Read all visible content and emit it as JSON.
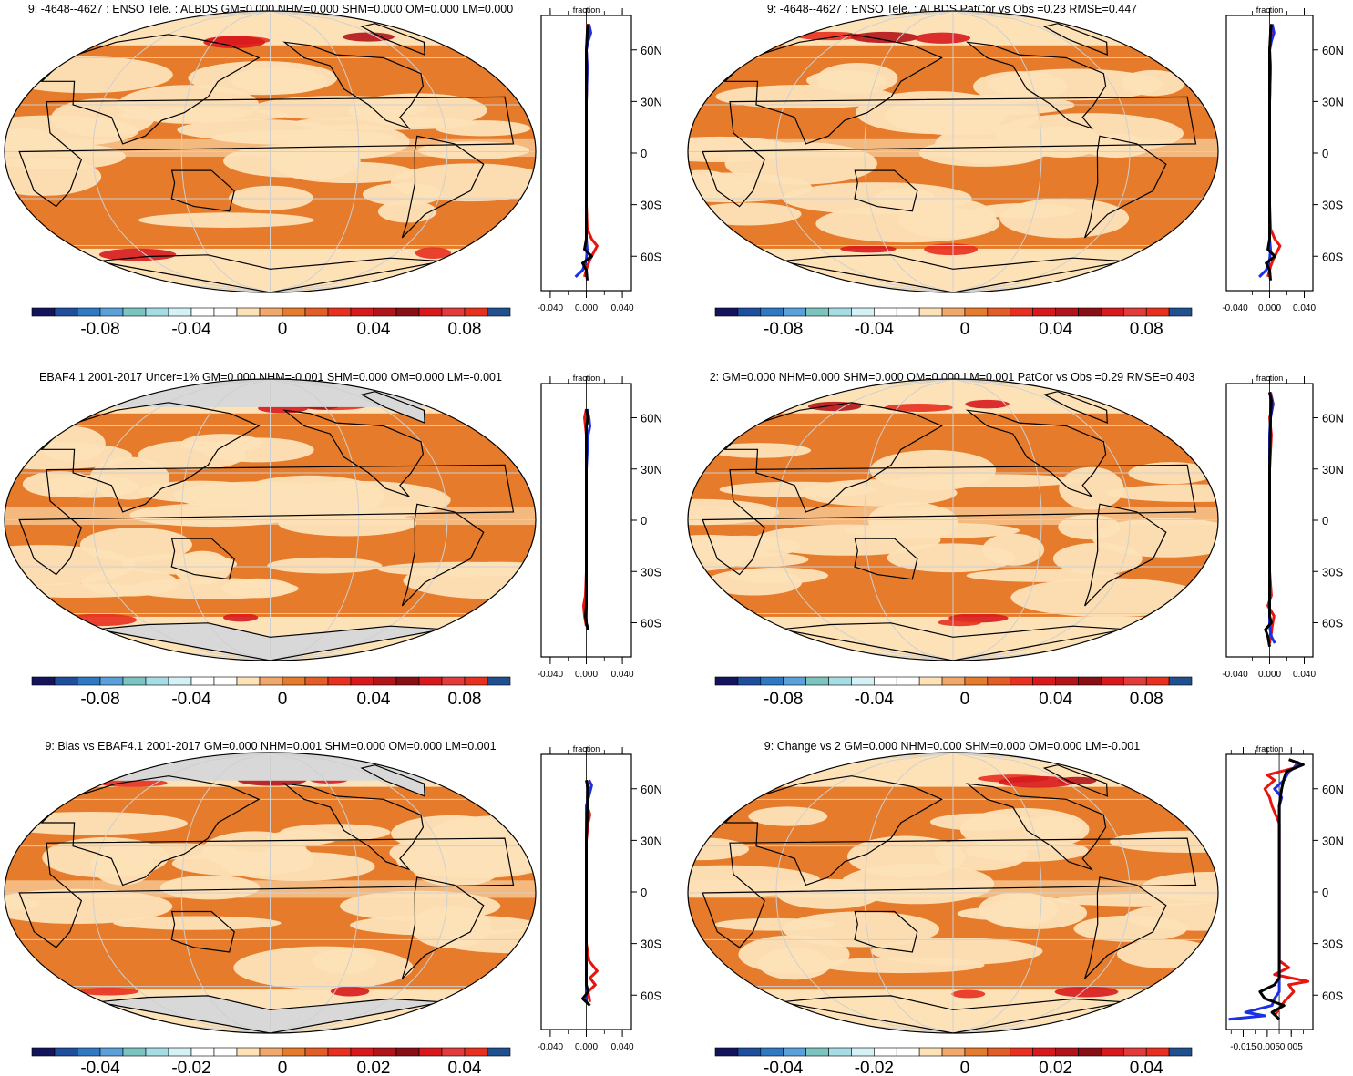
{
  "colors": {
    "land_missing": "#d8d8d8",
    "coast": "#000000",
    "grid": "#cfcfcf",
    "profile_lines": [
      "#e8140f",
      "#1b2fe6",
      "#000000"
    ],
    "palette": [
      "#14145c",
      "#1e4f9e",
      "#2f78c4",
      "#5aa0db",
      "#7cc4c0",
      "#a6dde4",
      "#d4f1f6",
      "#ffffff",
      "#ffffff",
      "#fde2b8",
      "#f1a86a",
      "#e57b2b",
      "#e25e26",
      "#e7301f",
      "#d7191c",
      "#b2141b",
      "#8a0f14",
      "#d7191c",
      "#e23b3b",
      "#e7301f",
      "#205090"
    ]
  },
  "chart_data": [
    {
      "type": "heatmap",
      "title": "9: -4648--4627 : ENSO Tele. : ALBDS GM=0.000 NHM=0.000 SHM=0.000 OM=0.000 LM=0.000",
      "colorbar_ticks": [
        "-0.08",
        "-0.04",
        "0",
        "0.04",
        "0.08"
      ],
      "profile": {
        "title": "fraction",
        "x_ticks": [
          "-0.040",
          "0.000",
          "0.040"
        ],
        "xlim": [
          -0.05,
          0.05
        ],
        "y_ticks": [
          "60N",
          "30N",
          "0",
          "30S",
          "60S"
        ],
        "ylim": [
          -80,
          80
        ],
        "series": [
          {
            "lat": [
              -72,
              -66,
              -62,
              -58,
              -54,
              -50,
              -44,
              -30,
              -10,
              10,
              30,
              50,
              60,
              70,
              75
            ],
            "values": [
              -0.002,
              0.001,
              0.004,
              0.008,
              0.012,
              0.006,
              0.001,
              0.0,
              0.0,
              0.0,
              0.0,
              0.001,
              0.0,
              0.002,
              0.001
            ]
          },
          {
            "lat": [
              -72,
              -68,
              -62,
              -56,
              -50,
              -30,
              0,
              30,
              50,
              60,
              65,
              70,
              75
            ],
            "values": [
              -0.012,
              -0.004,
              0.0,
              0.001,
              0.0,
              0.0,
              0.0,
              0.0,
              0.001,
              0.0,
              0.002,
              0.005,
              0.003
            ]
          },
          {
            "lat": [
              -74,
              -68,
              -64,
              -60,
              -56,
              -50,
              -30,
              0,
              30,
              60,
              70,
              75
            ],
            "values": [
              0.001,
              0.0,
              -0.004,
              0.006,
              -0.002,
              0.0,
              0.0,
              0.0,
              0.0,
              0.0,
              0.001,
              0.002
            ]
          }
        ]
      }
    },
    {
      "type": "heatmap",
      "title": "9: -4648--4627 : ENSO Tele. : ALBDS PatCor vs Obs =0.23 RMSE=0.447",
      "colorbar_ticks": [
        "-0.08",
        "-0.04",
        "0",
        "0.04",
        "0.08"
      ],
      "profile": {
        "title": "fraction",
        "x_ticks": [
          "-0.040",
          "0.000",
          "0.040"
        ],
        "xlim": [
          -0.05,
          0.05
        ],
        "y_ticks": [
          "60N",
          "30N",
          "0",
          "30S",
          "60S"
        ],
        "ylim": [
          -80,
          80
        ],
        "series": [
          {
            "lat": [
              -72,
              -66,
              -62,
              -58,
              -54,
              -50,
              -44,
              -30,
              -10,
              10,
              30,
              50,
              60,
              70,
              75
            ],
            "values": [
              -0.002,
              0.001,
              0.004,
              0.008,
              0.012,
              0.006,
              0.001,
              0.0,
              0.0,
              0.0,
              0.0,
              0.001,
              0.0,
              0.002,
              0.001
            ]
          },
          {
            "lat": [
              -72,
              -68,
              -62,
              -56,
              -50,
              -30,
              0,
              30,
              50,
              60,
              65,
              70,
              75
            ],
            "values": [
              -0.012,
              -0.004,
              0.0,
              0.001,
              0.0,
              0.0,
              0.0,
              0.0,
              0.001,
              0.0,
              0.002,
              0.005,
              0.003
            ]
          },
          {
            "lat": [
              -74,
              -68,
              -64,
              -60,
              -56,
              -50,
              -30,
              0,
              30,
              60,
              70,
              75
            ],
            "values": [
              0.001,
              0.0,
              -0.004,
              0.006,
              -0.002,
              0.0,
              0.0,
              0.0,
              0.0,
              0.0,
              0.001,
              0.002
            ]
          }
        ]
      }
    },
    {
      "type": "heatmap",
      "title": "EBAF4.1 2001-2017 Uncer=1% GM=0.000 NHM=-0.001 SHM=0.000 OM=0.000 LM=-0.001",
      "colorbar_ticks": [
        "-0.08",
        "-0.04",
        "0",
        "0.04",
        "0.08"
      ],
      "profile": {
        "title": "fraction",
        "x_ticks": [
          "-0.040",
          "0.000",
          "0.040"
        ],
        "xlim": [
          -0.05,
          0.05
        ],
        "y_ticks": [
          "60N",
          "30N",
          "0",
          "30S",
          "60S"
        ],
        "ylim": [
          -80,
          80
        ],
        "series": [
          {
            "lat": [
              -62,
              -56,
              -50,
              -44,
              -30,
              0,
              30,
              50,
              60,
              65
            ],
            "values": [
              0.0,
              -0.002,
              -0.003,
              -0.001,
              0.0,
              0.0,
              0.0,
              0.0,
              -0.002,
              0.0
            ]
          },
          {
            "lat": [
              -62,
              -50,
              -30,
              0,
              30,
              50,
              55,
              60,
              65
            ],
            "values": [
              0.0,
              0.0,
              0.0,
              0.0,
              0.0,
              0.002,
              0.004,
              0.003,
              0.001
            ]
          },
          {
            "lat": [
              -64,
              -60,
              -56,
              -50,
              -30,
              0,
              30,
              55,
              60,
              65
            ],
            "values": [
              0.002,
              0.0,
              -0.001,
              0.0,
              0.0,
              0.0,
              0.0,
              0.0,
              0.002,
              0.0
            ]
          }
        ]
      }
    },
    {
      "type": "heatmap",
      "title": "2: GM=0.000 NHM=0.000 SHM=0.000 OM=0.000 LM=0.001 PatCor vs Obs =0.29 RMSE=0.403",
      "colorbar_ticks": [
        "-0.08",
        "-0.04",
        "0",
        "0.04",
        "0.08"
      ],
      "profile": {
        "title": "fraction",
        "x_ticks": [
          "-0.040",
          "0.000",
          "0.040"
        ],
        "xlim": [
          -0.05,
          0.05
        ],
        "y_ticks": [
          "60N",
          "30N",
          "0",
          "30S",
          "60S"
        ],
        "ylim": [
          -80,
          80
        ],
        "series": [
          {
            "lat": [
              -72,
              -66,
              -62,
              -56,
              -50,
              -44,
              -30,
              0,
              30,
              50,
              60,
              68,
              75
            ],
            "values": [
              0.0,
              0.002,
              0.003,
              0.005,
              -0.002,
              0.002,
              0.0,
              0.0,
              0.0,
              0.002,
              0.0,
              0.004,
              0.001
            ]
          },
          {
            "lat": [
              -72,
              -68,
              -62,
              -50,
              -30,
              0,
              30,
              50,
              60,
              68,
              75
            ],
            "values": [
              0.006,
              0.002,
              0.0,
              0.0,
              0.0,
              0.0,
              0.0,
              0.0,
              0.001,
              0.004,
              0.0
            ]
          },
          {
            "lat": [
              -74,
              -68,
              -64,
              -60,
              -56,
              -50,
              -30,
              0,
              30,
              60,
              70,
              75
            ],
            "values": [
              0.0,
              -0.002,
              -0.005,
              0.002,
              0.0,
              0.0,
              0.0,
              0.0,
              0.0,
              0.001,
              0.002,
              0.0
            ]
          }
        ]
      }
    },
    {
      "type": "heatmap",
      "title": "9: Bias vs EBAF4.1 2001-2017 GM=0.000 NHM=0.001 SHM=0.000 OM=0.000 LM=0.001",
      "colorbar_ticks": [
        "-0.04",
        "-0.02",
        "0",
        "0.02",
        "0.04"
      ],
      "profile": {
        "title": "fraction",
        "x_ticks": [
          "-0.040",
          "0.000",
          "0.040"
        ],
        "xlim": [
          -0.05,
          0.05
        ],
        "y_ticks": [
          "60N",
          "30N",
          "0",
          "30S",
          "60S"
        ],
        "ylim": [
          -80,
          80
        ],
        "series": [
          {
            "lat": [
              -64,
              -58,
              -54,
              -50,
              -46,
              -40,
              -30,
              0,
              30,
              40,
              45,
              50,
              60,
              65
            ],
            "values": [
              0.004,
              0.002,
              0.01,
              0.004,
              0.012,
              0.003,
              0.0,
              0.0,
              0.0,
              0.002,
              0.004,
              0.001,
              0.003,
              0.0
            ]
          },
          {
            "lat": [
              -64,
              -50,
              -30,
              0,
              30,
              50,
              58,
              62,
              65
            ],
            "values": [
              0.0,
              0.0,
              0.0,
              0.0,
              0.0,
              0.0,
              0.004,
              0.006,
              0.003
            ]
          },
          {
            "lat": [
              -66,
              -62,
              -58,
              -54,
              -50,
              -30,
              0,
              30,
              60,
              65
            ],
            "values": [
              0.004,
              -0.004,
              0.002,
              0.0,
              0.0,
              0.0,
              0.0,
              0.0,
              0.002,
              0.0
            ]
          }
        ]
      }
    },
    {
      "type": "heatmap",
      "title": "9: Change vs 2 GM=0.000 NHM=0.000 SHM=0.000 OM=0.000 LM=-0.001",
      "colorbar_ticks": [
        "-0.04",
        "-0.02",
        "0",
        "0.02",
        "0.04"
      ],
      "profile": {
        "title": "fraction",
        "x_ticks": [
          "-0.015",
          "-0.005",
          "0.005"
        ],
        "xlim": [
          -0.022,
          0.014
        ],
        "y_ticks": [
          "60N",
          "30N",
          "0",
          "30S",
          "60S"
        ],
        "ylim": [
          -80,
          80
        ],
        "series": [
          {
            "lat": [
              -72,
              -68,
              -64,
              -58,
              -54,
              -52,
              -48,
              -44,
              -40,
              -30,
              0,
              30,
              40,
              50,
              55,
              60,
              65,
              68,
              72,
              76
            ],
            "values": [
              -0.002,
              0.0,
              0.002,
              0.006,
              0.004,
              0.012,
              -0.002,
              0.004,
              0.0,
              0.0,
              0.0,
              0.0,
              0.0,
              -0.003,
              -0.004,
              -0.006,
              -0.002,
              -0.005,
              0.006,
              0.008
            ]
          },
          {
            "lat": [
              -74,
              -72,
              -70,
              -66,
              -62,
              -58,
              -50,
              -30,
              0,
              30,
              50,
              55,
              60,
              65,
              70,
              74,
              76
            ],
            "values": [
              -0.021,
              -0.006,
              -0.014,
              -0.003,
              -0.002,
              0.0,
              0.0,
              0.0,
              0.0,
              0.0,
              0.0,
              0.001,
              -0.002,
              0.002,
              0.004,
              0.008,
              0.006
            ]
          },
          {
            "lat": [
              -74,
              -70,
              -66,
              -62,
              -58,
              -54,
              -50,
              -30,
              0,
              30,
              50,
              60,
              66,
              70,
              74,
              77
            ],
            "values": [
              0.0,
              -0.003,
              0.002,
              -0.006,
              -0.008,
              -0.002,
              0.0,
              0.0,
              0.0,
              0.0,
              0.0,
              0.001,
              0.002,
              0.003,
              0.01,
              0.004
            ]
          }
        ]
      }
    }
  ]
}
